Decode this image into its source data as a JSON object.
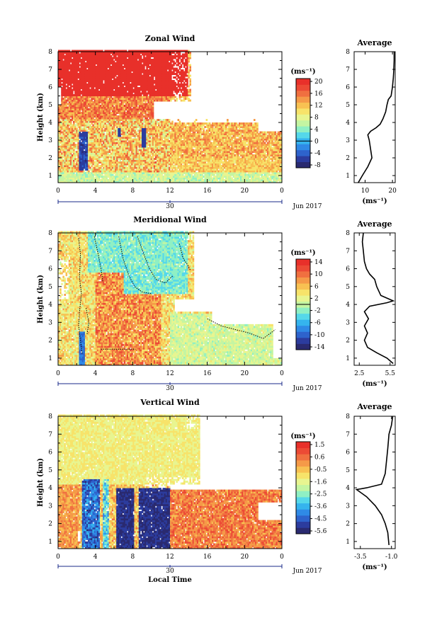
{
  "chart_data": [
    {
      "type": "heatmap",
      "title": "Zonal Wind",
      "ylabel": "Height (km)",
      "xticks": [
        "0",
        "4",
        "8",
        "12",
        "16",
        "20",
        "0"
      ],
      "yticks": [
        "1",
        "2",
        "3",
        "4",
        "5",
        "6",
        "7",
        "8"
      ],
      "xlim": [
        0,
        24
      ],
      "ylim": [
        0.6,
        8
      ],
      "date_label": "30",
      "month_label": "Jun 2017",
      "colorbar": {
        "unit": "(ms⁻¹)",
        "ticks": [
          "20",
          "16",
          "12",
          "8",
          "4",
          "0",
          "-4",
          "-8"
        ],
        "range": [
          -10,
          22
        ],
        "colors": [
          "#2a2a70",
          "#2c3c9e",
          "#2e63cc",
          "#2f8ae6",
          "#35b4ee",
          "#55d8ea",
          "#8ff0c4",
          "#c4f5a2",
          "#e8f590",
          "#f7e36a",
          "#f8c152",
          "#f59a48",
          "#f07040",
          "#ec4a35",
          "#e8302a"
        ]
      },
      "average_panel": {
        "title": "Average",
        "xticks": [
          "10",
          "20"
        ],
        "xlim": [
          6,
          21
        ],
        "unit": "(ms⁻¹)",
        "profile": [
          [
            7.5,
            0.6
          ],
          [
            9.0,
            1.0
          ],
          [
            11.0,
            1.5
          ],
          [
            12.5,
            2.0
          ],
          [
            12.0,
            2.5
          ],
          [
            11.5,
            3.0
          ],
          [
            11.0,
            3.3
          ],
          [
            12.0,
            3.5
          ],
          [
            14.0,
            3.7
          ],
          [
            15.5,
            3.9
          ],
          [
            16.5,
            4.2
          ],
          [
            17.5,
            4.6
          ],
          [
            18.0,
            5.0
          ],
          [
            18.5,
            5.3
          ],
          [
            19.5,
            5.5
          ],
          [
            20.0,
            6.0
          ],
          [
            20.3,
            6.5
          ],
          [
            20.5,
            7.0
          ],
          [
            20.6,
            7.5
          ],
          [
            20.6,
            8.0
          ]
        ]
      }
    },
    {
      "type": "heatmap",
      "title": "Meridional Wind",
      "ylabel": "Height (km)",
      "xticks": [
        "0",
        "4",
        "8",
        "12",
        "16",
        "20",
        "0"
      ],
      "yticks": [
        "1",
        "2",
        "3",
        "4",
        "5",
        "6",
        "7",
        "8"
      ],
      "xlim": [
        0,
        24
      ],
      "ylim": [
        0.6,
        8
      ],
      "date_label": "30",
      "month_label": "Jun 2017",
      "colorbar": {
        "unit": "(ms⁻¹)",
        "ticks": [
          "14",
          "10",
          "6",
          "2",
          "-2",
          "-6",
          "-10",
          "-14"
        ],
        "range": [
          -16,
          17
        ],
        "colors": [
          "#2a2a70",
          "#2c3c9e",
          "#2e63cc",
          "#2f8ae6",
          "#35b4ee",
          "#55d8ea",
          "#8ff0c4",
          "#c4f5a2",
          "#e8f590",
          "#f7e36a",
          "#f8c152",
          "#f59a48",
          "#f07040",
          "#ec4a35",
          "#e8302a"
        ]
      },
      "average_panel": {
        "title": "Average",
        "xticks": [
          "2.5",
          "5.5"
        ],
        "xlim": [
          2.0,
          6.0
        ],
        "unit": "(ms⁻¹)",
        "profile": [
          [
            5.8,
            0.7
          ],
          [
            5.2,
            1.0
          ],
          [
            4.2,
            1.3
          ],
          [
            3.3,
            1.6
          ],
          [
            3.0,
            2.0
          ],
          [
            3.3,
            2.4
          ],
          [
            3.0,
            2.8
          ],
          [
            3.4,
            3.2
          ],
          [
            3.0,
            3.6
          ],
          [
            3.5,
            3.9
          ],
          [
            5.2,
            4.1
          ],
          [
            5.8,
            4.2
          ],
          [
            4.6,
            4.5
          ],
          [
            4.2,
            5.0
          ],
          [
            4.0,
            5.4
          ],
          [
            3.5,
            5.7
          ],
          [
            3.2,
            6.0
          ],
          [
            3.0,
            6.4
          ],
          [
            2.9,
            7.0
          ],
          [
            2.8,
            7.5
          ],
          [
            2.9,
            8.0
          ]
        ]
      }
    },
    {
      "type": "heatmap",
      "title": "Vertical Wind",
      "ylabel": "Height (km)",
      "xlabel": "Local Time",
      "xticks": [
        "0",
        "4",
        "8",
        "12",
        "16",
        "20",
        "0"
      ],
      "yticks": [
        "1",
        "2",
        "3",
        "4",
        "5",
        "6",
        "7",
        "8"
      ],
      "xlim": [
        0,
        24
      ],
      "ylim": [
        0.6,
        8
      ],
      "date_label": "30",
      "month_label": "Jun 2017",
      "colorbar": {
        "unit": "(ms⁻¹)",
        "ticks": [
          "1.5",
          "0.6",
          "-0.5",
          "-1.6",
          "-2.5",
          "-3.6",
          "-4.5",
          "-5.6"
        ],
        "range": [
          -6.0,
          2.0
        ],
        "colors": [
          "#2a2a70",
          "#2c3c9e",
          "#2e63cc",
          "#2f8ae6",
          "#35b4ee",
          "#55d8ea",
          "#8ff0c4",
          "#c4f5a2",
          "#e8f590",
          "#f7e36a",
          "#f8c152",
          "#f59a48",
          "#f07040",
          "#ec4a35",
          "#e8302a"
        ]
      },
      "average_panel": {
        "title": "Average",
        "xticks": [
          "-3.5",
          "-1.0"
        ],
        "xlim": [
          -4.0,
          -0.7
        ],
        "unit": "(ms⁻¹)",
        "profile": [
          [
            -1.2,
            0.8
          ],
          [
            -1.3,
            1.5
          ],
          [
            -1.5,
            2.0
          ],
          [
            -1.8,
            2.5
          ],
          [
            -2.3,
            3.0
          ],
          [
            -3.0,
            3.5
          ],
          [
            -3.8,
            3.9
          ],
          [
            -3.0,
            4.0
          ],
          [
            -1.8,
            4.2
          ],
          [
            -1.5,
            4.8
          ],
          [
            -1.4,
            5.5
          ],
          [
            -1.3,
            6.2
          ],
          [
            -1.2,
            7.0
          ],
          [
            -1.0,
            7.5
          ],
          [
            -0.9,
            8.0
          ]
        ]
      }
    }
  ]
}
